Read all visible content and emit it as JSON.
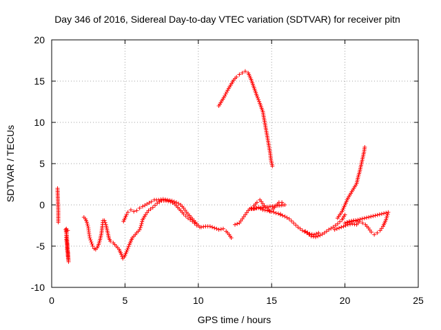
{
  "chart_data": {
    "type": "scatter",
    "title": "Day 346 of 2016, Sidereal Day-to-day VTEC variation (SDTVAR) for receiver pitn",
    "xlabel": "GPS time / hours",
    "ylabel": "SDTVAR / TECUs",
    "xlim": [
      0,
      25
    ],
    "ylim": [
      -10,
      20
    ],
    "xticks": [
      0,
      5,
      10,
      15,
      20,
      25
    ],
    "yticks": [
      -10,
      -5,
      0,
      5,
      10,
      15,
      20
    ],
    "xtick_labels": [
      "0",
      "5",
      "10",
      "15",
      "20",
      "25"
    ],
    "ytick_labels": [
      "-10",
      "-5",
      "0",
      "5",
      "10",
      "15",
      "20"
    ],
    "grid": true,
    "marker": "plus",
    "color": "#ff0000",
    "series": [
      {
        "name": "isolated-start",
        "points": [
          [
            0.4,
            2.0
          ],
          [
            0.45,
            -0.8
          ],
          [
            0.45,
            -2.1
          ]
        ]
      },
      {
        "name": "drop-near-1h",
        "points": [
          [
            0.95,
            -3.0
          ],
          [
            1.0,
            -3.5
          ],
          [
            1.0,
            -4.2
          ],
          [
            1.05,
            -4.8
          ],
          [
            1.05,
            -5.4
          ],
          [
            1.1,
            -5.8
          ],
          [
            1.1,
            -6.2
          ],
          [
            1.15,
            -6.9
          ],
          [
            1.0,
            -2.9
          ],
          [
            1.1,
            -3.1
          ]
        ]
      },
      {
        "name": "track-2h-5h",
        "points": [
          [
            2.2,
            -1.5
          ],
          [
            2.3,
            -1.7
          ],
          [
            2.4,
            -2.1
          ],
          [
            2.5,
            -2.8
          ],
          [
            2.55,
            -3.5
          ],
          [
            2.6,
            -4.0
          ],
          [
            2.7,
            -4.5
          ],
          [
            2.8,
            -5.0
          ],
          [
            2.9,
            -5.3
          ],
          [
            3.0,
            -5.4
          ],
          [
            3.1,
            -5.2
          ],
          [
            3.2,
            -4.8
          ],
          [
            3.3,
            -4.2
          ],
          [
            3.4,
            -3.4
          ],
          [
            3.45,
            -2.6
          ],
          [
            3.5,
            -1.9
          ],
          [
            3.6,
            -1.9
          ],
          [
            3.7,
            -2.4
          ],
          [
            3.8,
            -3.2
          ],
          [
            3.9,
            -4.0
          ],
          [
            4.0,
            -4.4
          ],
          [
            4.2,
            -4.6
          ],
          [
            4.4,
            -5.0
          ],
          [
            4.6,
            -5.4
          ],
          [
            4.75,
            -6.0
          ],
          [
            4.85,
            -6.5
          ],
          [
            4.95,
            -6.3
          ],
          [
            5.1,
            -5.7
          ],
          [
            5.3,
            -4.8
          ],
          [
            5.5,
            -4.0
          ],
          [
            5.7,
            -3.6
          ],
          [
            5.9,
            -3.2
          ]
        ]
      },
      {
        "name": "track-5h-12h",
        "points": [
          [
            4.9,
            -2.0
          ],
          [
            5.0,
            -1.6
          ],
          [
            5.1,
            -1.2
          ],
          [
            5.2,
            -0.9
          ],
          [
            5.4,
            -0.6
          ],
          [
            5.6,
            -0.8
          ],
          [
            5.8,
            -0.7
          ],
          [
            6.0,
            -0.4
          ],
          [
            6.2,
            -0.2
          ],
          [
            6.5,
            0.1
          ],
          [
            6.8,
            0.4
          ],
          [
            7.0,
            0.6
          ],
          [
            7.3,
            0.6
          ],
          [
            7.6,
            0.7
          ],
          [
            7.9,
            0.6
          ],
          [
            8.2,
            0.5
          ],
          [
            8.5,
            0.3
          ],
          [
            8.8,
            0.0
          ],
          [
            9.0,
            -0.4
          ],
          [
            9.2,
            -0.9
          ],
          [
            9.4,
            -1.3
          ],
          [
            9.6,
            -1.7
          ],
          [
            9.8,
            -2.1
          ],
          [
            10.0,
            -2.5
          ],
          [
            10.2,
            -2.7
          ],
          [
            10.5,
            -2.6
          ],
          [
            10.8,
            -2.6
          ],
          [
            11.1,
            -2.8
          ],
          [
            11.4,
            -3.0
          ],
          [
            11.7,
            -2.9
          ],
          [
            11.9,
            -3.2
          ],
          [
            12.1,
            -3.6
          ],
          [
            12.25,
            -4.0
          ]
        ]
      },
      {
        "name": "track-6h-10h-lower",
        "points": [
          [
            6.0,
            -3.0
          ],
          [
            6.1,
            -2.5
          ],
          [
            6.2,
            -1.8
          ],
          [
            6.4,
            -1.2
          ],
          [
            6.6,
            -0.7
          ],
          [
            6.9,
            -0.3
          ],
          [
            7.2,
            0.2
          ],
          [
            7.5,
            0.5
          ],
          [
            7.8,
            0.5
          ],
          [
            8.1,
            0.4
          ],
          [
            8.4,
            0.1
          ],
          [
            8.7,
            -0.5
          ],
          [
            9.0,
            -1.1
          ],
          [
            9.3,
            -1.6
          ],
          [
            9.6,
            -2.0
          ],
          [
            9.9,
            -2.5
          ],
          [
            10.1,
            -2.7
          ]
        ]
      },
      {
        "name": "track-11h-15h-upper",
        "points": [
          [
            11.4,
            12.0
          ],
          [
            11.6,
            12.6
          ],
          [
            11.8,
            13.2
          ],
          [
            12.0,
            13.9
          ],
          [
            12.2,
            14.5
          ],
          [
            12.4,
            15.1
          ],
          [
            12.6,
            15.5
          ],
          [
            12.8,
            15.8
          ],
          [
            13.0,
            16.0
          ],
          [
            13.2,
            16.2
          ],
          [
            13.4,
            16.0
          ],
          [
            13.6,
            15.2
          ],
          [
            13.8,
            14.2
          ],
          [
            14.0,
            13.2
          ],
          [
            14.2,
            12.3
          ],
          [
            14.4,
            11.3
          ],
          [
            14.5,
            10.3
          ],
          [
            14.6,
            9.3
          ],
          [
            14.7,
            8.3
          ],
          [
            14.8,
            7.3
          ],
          [
            14.9,
            6.3
          ],
          [
            14.95,
            5.5
          ],
          [
            15.05,
            4.7
          ]
        ]
      },
      {
        "name": "track-12h-16h",
        "points": [
          [
            12.5,
            -2.4
          ],
          [
            12.8,
            -2.2
          ],
          [
            13.0,
            -1.7
          ],
          [
            13.2,
            -1.2
          ],
          [
            13.4,
            -0.7
          ],
          [
            13.6,
            -0.4
          ],
          [
            13.8,
            -0.1
          ],
          [
            14.0,
            0.3
          ],
          [
            14.2,
            0.6
          ],
          [
            14.3,
            0.4
          ],
          [
            14.5,
            -0.1
          ],
          [
            14.7,
            -0.4
          ],
          [
            14.9,
            -0.8
          ],
          [
            15.1,
            -0.5
          ],
          [
            15.3,
            -0.1
          ],
          [
            15.5,
            0.3
          ],
          [
            15.7,
            0.3
          ],
          [
            15.9,
            0.0
          ],
          [
            13.5,
            -0.5
          ],
          [
            13.8,
            -0.5
          ],
          [
            14.1,
            -0.3
          ],
          [
            14.4,
            -0.6
          ],
          [
            14.7,
            -0.7
          ],
          [
            15.0,
            -0.8
          ],
          [
            15.3,
            -1.0
          ],
          [
            15.6,
            -1.1
          ]
        ]
      },
      {
        "name": "track-15h-20h",
        "points": [
          [
            15.6,
            -1.2
          ],
          [
            15.9,
            -1.4
          ],
          [
            16.2,
            -1.7
          ],
          [
            16.5,
            -2.2
          ],
          [
            16.8,
            -2.7
          ],
          [
            17.1,
            -3.1
          ],
          [
            17.4,
            -3.4
          ],
          [
            17.7,
            -3.8
          ],
          [
            18.0,
            -3.9
          ],
          [
            18.3,
            -3.7
          ],
          [
            18.6,
            -3.4
          ],
          [
            18.9,
            -3.0
          ],
          [
            19.2,
            -2.7
          ],
          [
            19.5,
            -2.3
          ],
          [
            19.8,
            -1.8
          ],
          [
            20.0,
            -1.2
          ]
        ]
      },
      {
        "name": "track-17h-18h-small",
        "points": [
          [
            17.3,
            -3.2
          ],
          [
            17.6,
            -3.5
          ],
          [
            17.9,
            -3.6
          ],
          [
            18.2,
            -3.4
          ]
        ]
      },
      {
        "name": "track-19h-21h-rise",
        "points": [
          [
            19.5,
            -1.6
          ],
          [
            19.8,
            -0.8
          ],
          [
            20.0,
            0.0
          ],
          [
            20.2,
            0.8
          ],
          [
            20.4,
            1.4
          ],
          [
            20.6,
            2.0
          ],
          [
            20.8,
            2.6
          ],
          [
            20.9,
            3.4
          ],
          [
            21.0,
            4.0
          ],
          [
            21.1,
            4.8
          ],
          [
            21.2,
            5.6
          ],
          [
            21.3,
            6.4
          ],
          [
            21.35,
            7.0
          ]
        ]
      },
      {
        "name": "track-19h-23h-lower",
        "points": [
          [
            19.3,
            -3.0
          ],
          [
            19.6,
            -2.8
          ],
          [
            19.9,
            -2.6
          ],
          [
            20.2,
            -2.4
          ],
          [
            20.5,
            -2.3
          ],
          [
            20.8,
            -2.4
          ],
          [
            21.0,
            -2.0
          ],
          [
            21.2,
            -2.2
          ],
          [
            21.4,
            -2.4
          ],
          [
            21.6,
            -2.8
          ],
          [
            21.8,
            -3.3
          ],
          [
            22.0,
            -3.6
          ],
          [
            22.2,
            -3.4
          ],
          [
            22.4,
            -3.1
          ],
          [
            22.6,
            -2.6
          ],
          [
            22.8,
            -1.8
          ],
          [
            22.95,
            -0.9
          ],
          [
            20.0,
            -2.2
          ],
          [
            20.3,
            -2.0
          ],
          [
            20.6,
            -1.9
          ],
          [
            20.9,
            -2.0
          ]
        ]
      }
    ]
  }
}
